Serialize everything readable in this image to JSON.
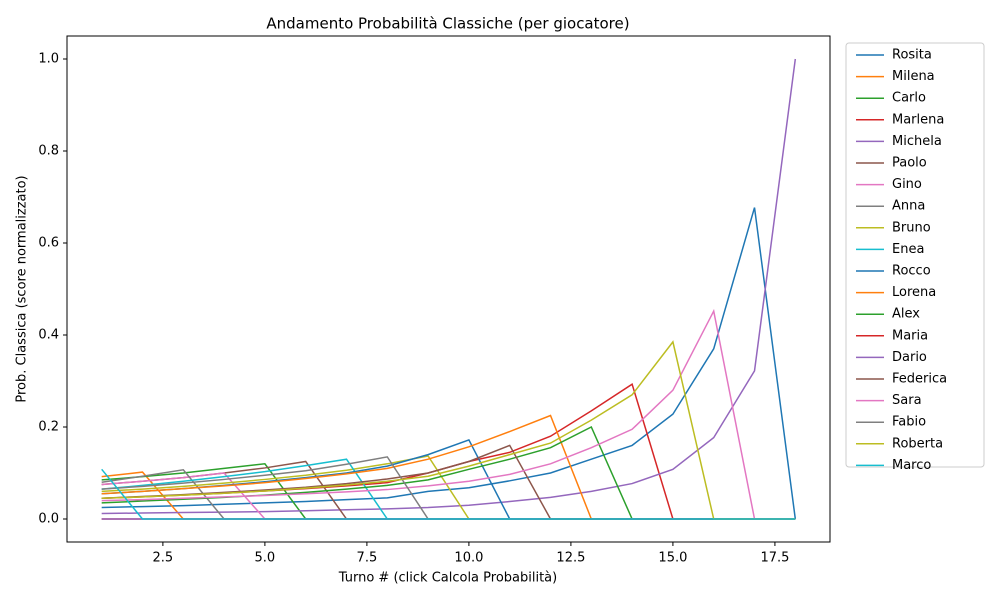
{
  "chart_data": {
    "type": "line",
    "title": "Andamento Probabilità Classiche (per giocatore)",
    "x_label": "Turno # (click Calcola Probabilità)",
    "y_label": "Prob. Classica (score normalizzato)",
    "x": [
      1,
      2,
      3,
      4,
      5,
      6,
      7,
      8,
      9,
      10,
      11,
      12,
      13,
      14,
      15,
      16,
      17,
      18
    ],
    "xlim": [
      0.15,
      18.85
    ],
    "xticks": [
      2.5,
      {
        "value": 5,
        "label": "5.0"
      },
      7.5,
      {
        "value": 10,
        "label": "10.0"
      },
      12.5,
      {
        "value": 15,
        "label": "15.0"
      },
      17.5
    ],
    "ylim": [
      -0.05,
      1.05
    ],
    "yticks": [
      {
        "value": 0,
        "label": "0.0"
      },
      0.2,
      0.4,
      0.6,
      0.8,
      {
        "value": 1,
        "label": "1.0"
      }
    ],
    "legend": "outside-right",
    "series": [
      {
        "name": "Rosita",
        "color": "#1f77b4",
        "values": [
          0.025,
          0.027,
          0.029,
          0.032,
          0.035,
          0.038,
          0.042,
          0.046,
          0.06,
          0.068,
          0.083,
          0.1,
          0.13,
          0.16,
          0.228,
          0.37,
          0.677,
          0
        ]
      },
      {
        "name": "Milena",
        "color": "#ff7f0e",
        "values": [
          0.092,
          0.102,
          0,
          0,
          0,
          0,
          0,
          0,
          0,
          0,
          0,
          0,
          0,
          0,
          0,
          0,
          0,
          0
        ]
      },
      {
        "name": "Carlo",
        "color": "#2ca02c",
        "values": [
          0.085,
          0.092,
          0.1,
          0.11,
          0.12,
          0,
          0,
          0,
          0,
          0,
          0,
          0,
          0,
          0,
          0,
          0,
          0,
          0
        ]
      },
      {
        "name": "Marlena",
        "color": "#d62728",
        "values": [
          0.045,
          0.048,
          0.052,
          0.056,
          0.061,
          0.066,
          0.072,
          0.079,
          0.1,
          0.125,
          0.145,
          0.18,
          0.235,
          0.293,
          0,
          0,
          0,
          0
        ]
      },
      {
        "name": "Michela",
        "color": "#9467bd",
        "values": [
          0.012,
          0.013,
          0.014,
          0.015,
          0.016,
          0.018,
          0.02,
          0.022,
          0.025,
          0.03,
          0.038,
          0.047,
          0.06,
          0.077,
          0.108,
          0.177,
          0.322,
          1.0
        ]
      },
      {
        "name": "Paolo",
        "color": "#8c564b",
        "values": [
          0.075,
          0.082,
          0.09,
          0.1,
          0.111,
          0.125,
          0,
          0,
          0,
          0,
          0,
          0,
          0,
          0,
          0,
          0,
          0,
          0
        ]
      },
      {
        "name": "Gino",
        "color": "#e377c2",
        "values": [
          0.075,
          0.082,
          0.09,
          0.1,
          0,
          0,
          0,
          0,
          0,
          0,
          0,
          0,
          0,
          0,
          0,
          0,
          0,
          0
        ]
      },
      {
        "name": "Anna",
        "color": "#7f7f7f",
        "values": [
          0.08,
          0.093,
          0.107,
          0,
          0,
          0,
          0,
          0,
          0,
          0,
          0,
          0,
          0,
          0,
          0,
          0,
          0,
          0
        ]
      },
      {
        "name": "Bruno",
        "color": "#bcbd22",
        "values": [
          0.06,
          0.065,
          0.071,
          0.078,
          0.086,
          0.095,
          0.106,
          0.12,
          0.137,
          0,
          0,
          0,
          0,
          0,
          0,
          0,
          0,
          0
        ]
      },
      {
        "name": "Enea",
        "color": "#17becf",
        "values": [
          0.065,
          0.073,
          0.082,
          0.092,
          0.103,
          0.116,
          0.13,
          0,
          0,
          0,
          0,
          0,
          0,
          0,
          0,
          0,
          0,
          0
        ]
      },
      {
        "name": "Rocco",
        "color": "#1f77b4",
        "values": [
          0.055,
          0.06,
          0.066,
          0.073,
          0.081,
          0.09,
          0.1,
          0.115,
          0.14,
          0.172,
          0,
          0,
          0,
          0,
          0,
          0,
          0,
          0
        ]
      },
      {
        "name": "Lorena",
        "color": "#ff7f0e",
        "values": [
          0.055,
          0.06,
          0.066,
          0.072,
          0.079,
          0.088,
          0.098,
          0.11,
          0.13,
          0.157,
          0.19,
          0.225,
          0,
          0,
          0,
          0,
          0,
          0
        ]
      },
      {
        "name": "Alex",
        "color": "#2ca02c",
        "values": [
          0.035,
          0.039,
          0.043,
          0.047,
          0.052,
          0.058,
          0.065,
          0.073,
          0.085,
          0.108,
          0.13,
          0.155,
          0.2,
          0,
          0,
          0,
          0,
          0
        ]
      },
      {
        "name": "Maria",
        "color": "#d62728",
        "values": [
          0,
          0,
          0,
          0,
          0,
          0,
          0,
          0,
          0,
          0,
          0,
          0,
          0,
          0,
          0,
          0,
          0,
          0
        ]
      },
      {
        "name": "Dario",
        "color": "#9467bd",
        "values": [
          0,
          0,
          0,
          0,
          0,
          0,
          0,
          0,
          0,
          0,
          0,
          0,
          0,
          0,
          0,
          0,
          0,
          0
        ]
      },
      {
        "name": "Federica",
        "color": "#8c564b",
        "values": [
          0.045,
          0.049,
          0.053,
          0.058,
          0.063,
          0.069,
          0.077,
          0.087,
          0.1,
          0.125,
          0.16,
          0,
          0,
          0,
          0,
          0,
          0,
          0
        ]
      },
      {
        "name": "Sara",
        "color": "#e377c2",
        "values": [
          0.04,
          0.042,
          0.045,
          0.048,
          0.051,
          0.055,
          0.059,
          0.064,
          0.072,
          0.082,
          0.097,
          0.12,
          0.155,
          0.195,
          0.28,
          0.452,
          0,
          0
        ]
      },
      {
        "name": "Fabio",
        "color": "#7f7f7f",
        "values": [
          0.065,
          0.071,
          0.078,
          0.086,
          0.095,
          0.105,
          0.119,
          0.135,
          0,
          0,
          0,
          0,
          0,
          0,
          0,
          0,
          0,
          0
        ]
      },
      {
        "name": "Roberta",
        "color": "#bcbd22",
        "values": [
          0.045,
          0.048,
          0.052,
          0.056,
          0.061,
          0.067,
          0.074,
          0.082,
          0.093,
          0.115,
          0.14,
          0.165,
          0.215,
          0.27,
          0.385,
          0,
          0,
          0
        ]
      },
      {
        "name": "Marco",
        "color": "#17becf",
        "values": [
          0.108,
          0,
          0,
          0,
          0,
          0,
          0,
          0,
          0,
          0,
          0,
          0,
          0,
          0,
          0,
          0,
          0,
          0
        ]
      }
    ]
  }
}
